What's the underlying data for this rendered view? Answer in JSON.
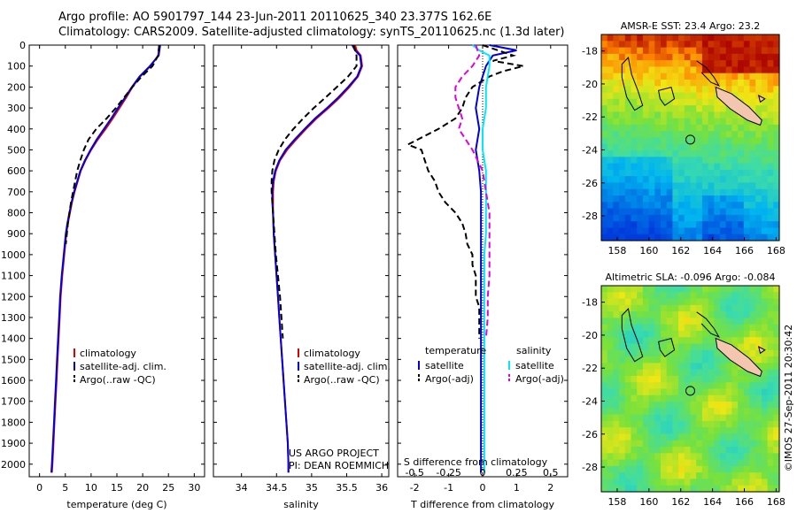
{
  "header": {
    "line1": "Argo profile: AO 5901797_144 23-Jun-2011 20110625_340 23.377S 162.6E",
    "line2": "Climatology: CARS2009. Satellite-adjusted climatology: synTS_20110625.nc (1.3d later)"
  },
  "credits": {
    "project": "US ARGO PROJECT",
    "pi": "PI: DEAN ROEMMICH",
    "stamp": "©IMOS 27-Sep-2011 20:30:42"
  },
  "colors": {
    "climatology": "#e00000",
    "satellite": "#0000e0",
    "argo": "#000000",
    "sat_s": "#00e8ff",
    "argo_s": "#e000e0"
  },
  "depth_axis": {
    "ticks": [
      0,
      100,
      200,
      300,
      400,
      500,
      600,
      700,
      800,
      900,
      1000,
      1100,
      1200,
      1300,
      1400,
      1500,
      1600,
      1700,
      1800,
      1900,
      2000
    ],
    "range": [
      0,
      2060
    ]
  },
  "chart_data": [
    {
      "type": "line",
      "xlabel": "temperature (deg C)",
      "ylabel": "",
      "xlim": [
        -2,
        32
      ],
      "ylim": [
        2060,
        0
      ],
      "xticks": [
        0,
        5,
        10,
        15,
        20,
        25,
        30
      ],
      "legend": [
        "climatology",
        "satellite-adj. clim.",
        "Argo(..raw -QC)"
      ],
      "legend_position": "lower-center",
      "series": [
        {
          "name": "climatology",
          "style": "solid",
          "color": "#e00000",
          "depth": [
            0,
            50,
            100,
            150,
            200,
            250,
            300,
            350,
            400,
            450,
            500,
            550,
            600,
            650,
            700,
            750,
            800,
            850,
            900,
            1000,
            1100,
            1200,
            1300,
            1400,
            1500,
            1600,
            1700,
            1800,
            1900,
            2000,
            2040
          ],
          "values": [
            23.2,
            23.0,
            21.5,
            19.5,
            18.0,
            16.8,
            15.5,
            14.2,
            12.8,
            11.3,
            10.0,
            8.9,
            8.0,
            7.4,
            6.8,
            6.3,
            5.9,
            5.5,
            5.2,
            4.8,
            4.4,
            4.1,
            3.9,
            3.7,
            3.5,
            3.3,
            3.1,
            2.9,
            2.7,
            2.5,
            2.4
          ]
        },
        {
          "name": "satellite-adj. clim.",
          "style": "solid",
          "color": "#0000e0",
          "depth": [
            0,
            50,
            100,
            150,
            200,
            250,
            300,
            350,
            400,
            450,
            500,
            550,
            600,
            650,
            700,
            750,
            800,
            850,
            900,
            1000,
            1100,
            1200,
            1300,
            1400,
            1500,
            1600,
            1700,
            1800,
            1900,
            2000,
            2040
          ],
          "values": [
            23.4,
            23.1,
            21.4,
            19.4,
            17.9,
            16.6,
            15.2,
            13.9,
            12.5,
            11.1,
            9.9,
            8.8,
            7.9,
            7.3,
            6.7,
            6.2,
            5.8,
            5.4,
            5.1,
            4.7,
            4.3,
            4.0,
            3.8,
            3.6,
            3.4,
            3.2,
            3.0,
            2.8,
            2.6,
            2.4,
            2.3
          ]
        },
        {
          "name": "Argo(..raw -QC)",
          "style": "dashed",
          "color": "#000000",
          "depth": [
            0,
            50,
            100,
            150,
            200,
            250,
            300,
            350,
            400,
            450,
            500,
            550,
            600,
            650,
            700,
            750,
            800,
            850,
            900,
            950
          ],
          "values": [
            23.2,
            23.0,
            21.9,
            19.8,
            18.0,
            16.4,
            14.8,
            13.0,
            11.0,
            9.5,
            8.6,
            7.9,
            7.3,
            6.9,
            6.5,
            6.1,
            5.8,
            5.5,
            5.3,
            5.1
          ]
        }
      ]
    },
    {
      "type": "line",
      "xlabel": "salinity",
      "ylabel": "",
      "xlim": [
        33.6,
        36.1
      ],
      "ylim": [
        2060,
        0
      ],
      "xticks": [
        34,
        34.5,
        35,
        35.5,
        36
      ],
      "legend": [
        "climatology",
        "satellite-adj. clim.",
        "Argo(..raw -QC)"
      ],
      "legend_position": "lower-right",
      "series": [
        {
          "name": "climatology",
          "style": "solid",
          "color": "#e00000",
          "depth": [
            0,
            25,
            50,
            100,
            150,
            200,
            250,
            300,
            350,
            400,
            450,
            500,
            550,
            600,
            650,
            700,
            750,
            800,
            900,
            1000,
            1100,
            1200,
            1300,
            1400,
            1500,
            1600,
            1700,
            1800,
            1900,
            2000,
            2040
          ],
          "values": [
            35.62,
            35.64,
            35.7,
            35.72,
            35.66,
            35.54,
            35.4,
            35.24,
            35.07,
            34.92,
            34.78,
            34.65,
            34.55,
            34.49,
            34.46,
            34.45,
            34.45,
            34.45,
            34.46,
            34.48,
            34.5,
            34.52,
            34.54,
            34.56,
            34.58,
            34.6,
            34.62,
            34.64,
            34.66,
            34.67,
            34.67
          ]
        },
        {
          "name": "satellite-adj. clim.",
          "style": "solid",
          "color": "#0000e0",
          "depth": [
            0,
            25,
            50,
            100,
            150,
            200,
            250,
            300,
            350,
            400,
            450,
            500,
            550,
            600,
            650,
            700,
            750,
            800,
            900,
            1000,
            1100,
            1200,
            1300,
            1400,
            1500,
            1600,
            1700,
            1800,
            1900,
            2000,
            2040
          ],
          "values": [
            35.58,
            35.62,
            35.69,
            35.71,
            35.65,
            35.52,
            35.38,
            35.22,
            35.05,
            34.9,
            34.76,
            34.63,
            34.54,
            34.48,
            34.45,
            34.44,
            34.44,
            34.45,
            34.46,
            34.48,
            34.5,
            34.52,
            34.54,
            34.56,
            34.58,
            34.6,
            34.62,
            34.64,
            34.66,
            34.67,
            34.67
          ]
        },
        {
          "name": "Argo(..raw -QC)",
          "style": "dashed",
          "color": "#000000",
          "depth": [
            0,
            50,
            100,
            150,
            200,
            250,
            300,
            350,
            400,
            450,
            500,
            550,
            600,
            650,
            700,
            750,
            800,
            850,
            900,
            950,
            1000,
            1100,
            1200,
            1300,
            1400
          ],
          "values": [
            35.6,
            35.64,
            35.64,
            35.52,
            35.36,
            35.2,
            35.03,
            34.88,
            34.74,
            34.62,
            34.53,
            34.47,
            34.44,
            34.43,
            34.43,
            34.44,
            34.45,
            34.46,
            34.47,
            34.48,
            34.49,
            34.52,
            34.55,
            34.57,
            34.59
          ]
        }
      ]
    },
    {
      "type": "line",
      "xlabel": "T difference from climatology",
      "title": "S difference from climatology",
      "ylabel": "",
      "xlim": [
        -2.5,
        2.5
      ],
      "ylim": [
        2060,
        0
      ],
      "xticks": [
        -2,
        -1,
        0,
        1,
        2
      ],
      "top_axis_label": "S difference from climatology",
      "top_ticks": [
        "-0.5",
        "-0.25",
        "0",
        "0.25",
        "0.5"
      ],
      "legend": {
        "temperature": [
          "satellite",
          "Argo(-adj)"
        ],
        "salinity": [
          "satellite",
          "Argo(-adj)"
        ]
      },
      "legend_position": "lower-center",
      "series": [
        {
          "name": "temperature satellite",
          "style": "solid",
          "color": "#0000e0",
          "depth": [
            0,
            25,
            50,
            100,
            150,
            200,
            300,
            400,
            500,
            600,
            700,
            800,
            900,
            1000,
            1100,
            1200,
            1300,
            1400,
            1500,
            1600,
            1700,
            1800,
            1900,
            2000,
            2040
          ],
          "values": [
            0.2,
            1.0,
            0.3,
            0.1,
            0.0,
            -0.1,
            -0.2,
            -0.1,
            -0.2,
            -0.1,
            -0.05,
            -0.05,
            -0.05,
            -0.05,
            -0.05,
            -0.05,
            -0.05,
            -0.05,
            -0.05,
            -0.05,
            -0.05,
            -0.05,
            -0.05,
            -0.05,
            -0.05
          ]
        },
        {
          "name": "temperature Argo(-adj)",
          "style": "dashed",
          "color": "#000000",
          "depth": [
            0,
            50,
            75,
            100,
            125,
            150,
            200,
            250,
            300,
            350,
            400,
            450,
            475,
            500,
            550,
            600,
            650,
            700,
            750,
            800,
            850,
            900,
            950,
            1000,
            1050,
            1100,
            1150,
            1200,
            1250,
            1300,
            1350,
            1400
          ],
          "values": [
            0.0,
            0.9,
            0.3,
            1.2,
            0.6,
            0.2,
            -0.3,
            -0.5,
            -0.6,
            -0.8,
            -1.3,
            -1.9,
            -2.2,
            -1.8,
            -1.7,
            -1.6,
            -1.4,
            -1.3,
            -1.1,
            -0.8,
            -0.6,
            -0.5,
            -0.45,
            -0.3,
            -0.3,
            -0.2,
            -0.2,
            -0.2,
            -0.1,
            -0.1,
            -0.1,
            -0.1
          ]
        },
        {
          "name": "salinity satellite",
          "style": "solid",
          "color": "#00e8ff",
          "depth": [
            0,
            25,
            50,
            100,
            200,
            300,
            400,
            500,
            600,
            700,
            800,
            900,
            1000,
            1200,
            1400,
            1600,
            1800,
            2000,
            2040
          ],
          "values": [
            -0.3,
            -0.1,
            0.2,
            0.2,
            0.1,
            0.1,
            0.0,
            0.0,
            0.1,
            0.1,
            0.1,
            0.1,
            0.05,
            0.05,
            0.05,
            0.05,
            0.05,
            0.05,
            0.05
          ]
        },
        {
          "name": "salinity Argo(-adj)",
          "style": "dashed",
          "color": "#e000e0",
          "depth": [
            0,
            50,
            100,
            150,
            200,
            250,
            300,
            350,
            400,
            450,
            500,
            600,
            700,
            800,
            900,
            1000,
            1100,
            1200,
            1300,
            1400
          ],
          "values": [
            -0.2,
            -0.1,
            -0.3,
            -0.6,
            -0.8,
            -0.8,
            -0.7,
            -0.6,
            -0.7,
            -0.5,
            -0.3,
            0.0,
            0.1,
            0.2,
            0.2,
            0.2,
            0.2,
            0.15,
            0.15,
            0.1
          ]
        }
      ]
    },
    {
      "type": "heatmap",
      "title": "AMSR-E SST: 23.4 Argo: 23.2",
      "xlim": [
        157,
        168.2
      ],
      "ylim": [
        -29.5,
        -17
      ],
      "xticks": [
        158,
        160,
        162,
        164,
        166,
        168
      ],
      "yticks": [
        -18,
        -20,
        -22,
        -24,
        -26,
        -28
      ],
      "marker": {
        "lon": 162.6,
        "lat": -23.377
      }
    },
    {
      "type": "heatmap",
      "title": "Altimetric SLA: -0.096 Argo: -0.084",
      "xlim": [
        157,
        168.2
      ],
      "ylim": [
        -29.5,
        -17
      ],
      "xticks": [
        158,
        160,
        162,
        164,
        166,
        168
      ],
      "yticks": [
        -18,
        -20,
        -22,
        -24,
        -26,
        -28
      ],
      "marker": {
        "lon": 162.6,
        "lat": -23.377
      }
    }
  ]
}
